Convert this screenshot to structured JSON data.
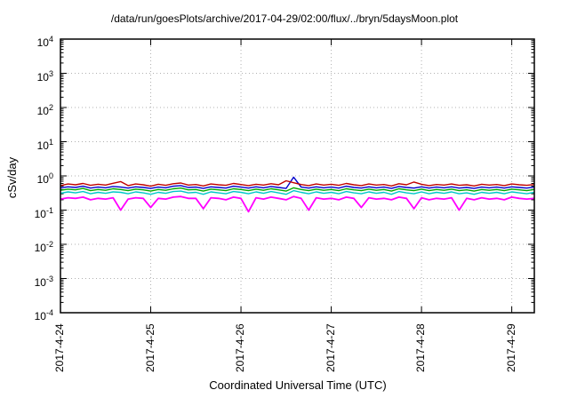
{
  "chart_data": {
    "type": "line",
    "title": "/data/run/goesPlots/archive/2017-04-29/02:00/flux/../bryn/5daysMoon.plot",
    "xlabel": "Coordinated Universal Time (UTC)",
    "ylabel": "cSv/day",
    "y_scale": "log10",
    "ylim": [
      0.0001,
      10000
    ],
    "y_tick_exponents": [
      4,
      3,
      2,
      1,
      0,
      -1,
      -2,
      -3,
      -4
    ],
    "x_tick_labels": [
      "2017-4-24",
      "2017-4-25",
      "2017-4-26",
      "2017-4-27",
      "2017-4-28",
      "2017-4-29"
    ],
    "x_tick_hours": [
      0,
      24,
      48,
      72,
      96,
      120
    ],
    "x_range_hours": [
      0,
      126
    ],
    "x_hours_step": 2,
    "grid": true,
    "legend": "none",
    "series": [
      {
        "name": "magenta",
        "color": "#ff00ff",
        "values": [
          0.21,
          0.23,
          0.22,
          0.24,
          0.2,
          0.22,
          0.21,
          0.23,
          0.1,
          0.21,
          0.23,
          0.22,
          0.12,
          0.22,
          0.21,
          0.24,
          0.25,
          0.22,
          0.22,
          0.11,
          0.23,
          0.22,
          0.2,
          0.24,
          0.22,
          0.09,
          0.23,
          0.21,
          0.24,
          0.22,
          0.2,
          0.25,
          0.22,
          0.1,
          0.23,
          0.21,
          0.22,
          0.2,
          0.24,
          0.22,
          0.12,
          0.23,
          0.21,
          0.22,
          0.2,
          0.24,
          0.22,
          0.11,
          0.23,
          0.2,
          0.22,
          0.21,
          0.23,
          0.1,
          0.22,
          0.2,
          0.23,
          0.21,
          0.22,
          0.2,
          0.24,
          0.22,
          0.21,
          0.22
        ]
      },
      {
        "name": "cyan",
        "color": "#00c8c8",
        "values": [
          0.31,
          0.34,
          0.32,
          0.35,
          0.3,
          0.33,
          0.31,
          0.34,
          0.33,
          0.3,
          0.34,
          0.32,
          0.29,
          0.33,
          0.31,
          0.35,
          0.36,
          0.32,
          0.33,
          0.29,
          0.34,
          0.32,
          0.3,
          0.35,
          0.33,
          0.3,
          0.34,
          0.31,
          0.35,
          0.32,
          0.29,
          0.37,
          0.33,
          0.3,
          0.34,
          0.31,
          0.33,
          0.3,
          0.35,
          0.32,
          0.3,
          0.34,
          0.31,
          0.33,
          0.29,
          0.35,
          0.32,
          0.3,
          0.34,
          0.3,
          0.33,
          0.31,
          0.34,
          0.3,
          0.32,
          0.29,
          0.33,
          0.31,
          0.33,
          0.3,
          0.34,
          0.32,
          0.3,
          0.33
        ]
      },
      {
        "name": "green",
        "color": "#00aa00",
        "values": [
          0.38,
          0.41,
          0.39,
          0.43,
          0.37,
          0.4,
          0.38,
          0.42,
          0.4,
          0.37,
          0.41,
          0.39,
          0.36,
          0.4,
          0.38,
          0.42,
          0.44,
          0.39,
          0.4,
          0.36,
          0.41,
          0.39,
          0.37,
          0.42,
          0.4,
          0.37,
          0.41,
          0.38,
          0.42,
          0.39,
          0.36,
          0.45,
          0.4,
          0.37,
          0.41,
          0.38,
          0.4,
          0.37,
          0.42,
          0.39,
          0.37,
          0.41,
          0.38,
          0.4,
          0.36,
          0.42,
          0.39,
          0.37,
          0.41,
          0.37,
          0.4,
          0.38,
          0.41,
          0.37,
          0.39,
          0.36,
          0.4,
          0.38,
          0.4,
          0.37,
          0.41,
          0.39,
          0.37,
          0.4
        ]
      },
      {
        "name": "blue",
        "color": "#0000cc",
        "values": [
          0.45,
          0.48,
          0.46,
          0.5,
          0.44,
          0.47,
          0.45,
          0.49,
          0.47,
          0.44,
          0.48,
          0.46,
          0.43,
          0.47,
          0.45,
          0.5,
          0.52,
          0.46,
          0.47,
          0.43,
          0.48,
          0.46,
          0.44,
          0.5,
          0.47,
          0.44,
          0.48,
          0.45,
          0.49,
          0.46,
          0.43,
          0.92,
          0.47,
          0.44,
          0.48,
          0.45,
          0.47,
          0.44,
          0.5,
          0.46,
          0.44,
          0.48,
          0.45,
          0.47,
          0.43,
          0.49,
          0.46,
          0.44,
          0.48,
          0.44,
          0.47,
          0.45,
          0.48,
          0.44,
          0.46,
          0.43,
          0.47,
          0.45,
          0.47,
          0.44,
          0.48,
          0.46,
          0.44,
          0.47
        ]
      },
      {
        "name": "red",
        "color": "#c00000",
        "values": [
          0.52,
          0.58,
          0.55,
          0.6,
          0.53,
          0.57,
          0.54,
          0.61,
          0.68,
          0.52,
          0.58,
          0.55,
          0.5,
          0.57,
          0.53,
          0.59,
          0.62,
          0.54,
          0.56,
          0.51,
          0.58,
          0.55,
          0.53,
          0.6,
          0.56,
          0.52,
          0.57,
          0.54,
          0.59,
          0.55,
          0.72,
          0.63,
          0.56,
          0.52,
          0.58,
          0.54,
          0.57,
          0.53,
          0.6,
          0.55,
          0.52,
          0.58,
          0.54,
          0.56,
          0.51,
          0.59,
          0.55,
          0.66,
          0.57,
          0.52,
          0.56,
          0.54,
          0.58,
          0.53,
          0.55,
          0.51,
          0.57,
          0.54,
          0.56,
          0.52,
          0.58,
          0.55,
          0.53,
          0.56
        ]
      }
    ],
    "style": {
      "grid_color": "#b0b0b0",
      "border_color": "#000000"
    }
  }
}
